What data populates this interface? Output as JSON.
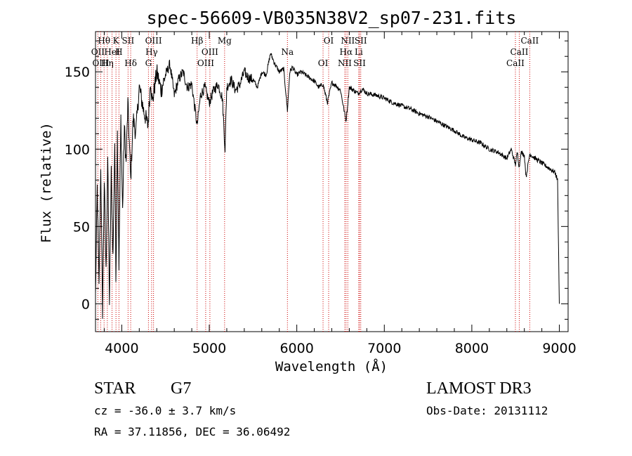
{
  "chart_data": {
    "type": "line",
    "title": "spec-56609-VB035N38V2_sp07-231.fits",
    "xlabel": "Wavelength (Å)",
    "ylabel": "Flux (relative)",
    "xlim": [
      3700,
      9100
    ],
    "ylim": [
      -18,
      176
    ],
    "x_ticks": [
      4000,
      5000,
      6000,
      7000,
      8000,
      9000
    ],
    "y_ticks": [
      0,
      50,
      100,
      150
    ],
    "grid": false,
    "series": [
      {
        "name": "flux",
        "x": [
          3700,
          3720,
          3740,
          3760,
          3780,
          3800,
          3820,
          3840,
          3860,
          3880,
          3900,
          3920,
          3933,
          3950,
          3968,
          3990,
          4010,
          4030,
          4050,
          4070,
          4102,
          4130,
          4160,
          4200,
          4250,
          4300,
          4330,
          4350,
          4400,
          4450,
          4500,
          4550,
          4600,
          4650,
          4700,
          4750,
          4800,
          4861,
          4900,
          4950,
          5000,
          5050,
          5100,
          5150,
          5180,
          5200,
          5250,
          5300,
          5350,
          5400,
          5450,
          5500,
          5550,
          5600,
          5650,
          5700,
          5750,
          5800,
          5850,
          5893,
          5920,
          5950,
          6000,
          6050,
          6100,
          6150,
          6200,
          6250,
          6300,
          6350,
          6400,
          6450,
          6500,
          6563,
          6600,
          6650,
          6700,
          6750,
          6800,
          6900,
          7000,
          7100,
          7200,
          7300,
          7400,
          7500,
          7600,
          7700,
          7800,
          7900,
          8000,
          8100,
          8200,
          8300,
          8400,
          8450,
          8498,
          8520,
          8542,
          8560,
          8600,
          8620,
          8662,
          8700,
          8750,
          8800,
          8850,
          8900,
          8950,
          8980,
          9000
        ],
        "values": [
          5,
          75,
          10,
          90,
          -5,
          80,
          20,
          95,
          0,
          85,
          30,
          105,
          15,
          110,
          25,
          120,
          60,
          115,
          90,
          130,
          80,
          120,
          110,
          140,
          125,
          115,
          145,
          130,
          150,
          138,
          148,
          155,
          135,
          145,
          150,
          140,
          142,
          115,
          135,
          140,
          130,
          138,
          142,
          133,
          100,
          140,
          145,
          138,
          142,
          150,
          146,
          145,
          140,
          150,
          148,
          162,
          155,
          150,
          152,
          125,
          150,
          153,
          148,
          150,
          148,
          146,
          144,
          140,
          142,
          130,
          143,
          141,
          138,
          118,
          140,
          138,
          136,
          139,
          136,
          135,
          133,
          130,
          128,
          126,
          123,
          121,
          118,
          115,
          112,
          108,
          106,
          104,
          100,
          98,
          94,
          100,
          90,
          98,
          88,
          98,
          96,
          82,
          97,
          95,
          93,
          91,
          89,
          87,
          85,
          80,
          0
        ],
        "style": "solid black thin"
      }
    ],
    "line_labels": [
      {
        "label": "Hθ",
        "wavelength": 3798
      },
      {
        "label": "OII",
        "wavelength": 3727
      },
      {
        "label": "OIII",
        "wavelength": 3760
      },
      {
        "label": "K",
        "wavelength": 3934
      },
      {
        "label": "HeI",
        "wavelength": 3889
      },
      {
        "label": "Hη",
        "wavelength": 3835
      },
      {
        "label": "SII",
        "wavelength": 4072
      },
      {
        "label": "H",
        "wavelength": 3968
      },
      {
        "label": "Hδ",
        "wavelength": 4102
      },
      {
        "label": "OIII",
        "wavelength": 4363
      },
      {
        "label": "Hγ",
        "wavelength": 4341
      },
      {
        "label": "G",
        "wavelength": 4305
      },
      {
        "label": "Hβ",
        "wavelength": 4861
      },
      {
        "label": "OIII",
        "wavelength": 5007
      },
      {
        "label": "OIII",
        "wavelength": 4959
      },
      {
        "label": "Mg",
        "wavelength": 5175
      },
      {
        "label": "Na",
        "wavelength": 5893
      },
      {
        "label": "OI",
        "wavelength": 6300
      },
      {
        "label": "OI",
        "wavelength": 6364
      },
      {
        "label": "Hα",
        "wavelength": 6563
      },
      {
        "label": "SII",
        "wavelength": 6717
      },
      {
        "label": "NII",
        "wavelength": 6583
      },
      {
        "label": "Li",
        "wavelength": 6708
      },
      {
        "label": "NII",
        "wavelength": 6548
      },
      {
        "label": "SII",
        "wavelength": 6731
      },
      {
        "label": "CaII",
        "wavelength": 8542
      },
      {
        "label": "CaII",
        "wavelength": 8498
      },
      {
        "label": "CaII",
        "wavelength": 8662
      }
    ]
  },
  "footer": {
    "class_label": "STAR",
    "subclass_label": "G7",
    "survey_label": "LAMOST DR3",
    "cz_text": "cz = -36.0 ± 3.7 km/s",
    "obs_date_text": "Obs-Date: 20131112",
    "coords_text": "RA =  37.11856, DEC =  36.06492"
  },
  "colors": {
    "spectrum": "#000000",
    "line_markers": "#cc0000",
    "axes": "#000000"
  }
}
